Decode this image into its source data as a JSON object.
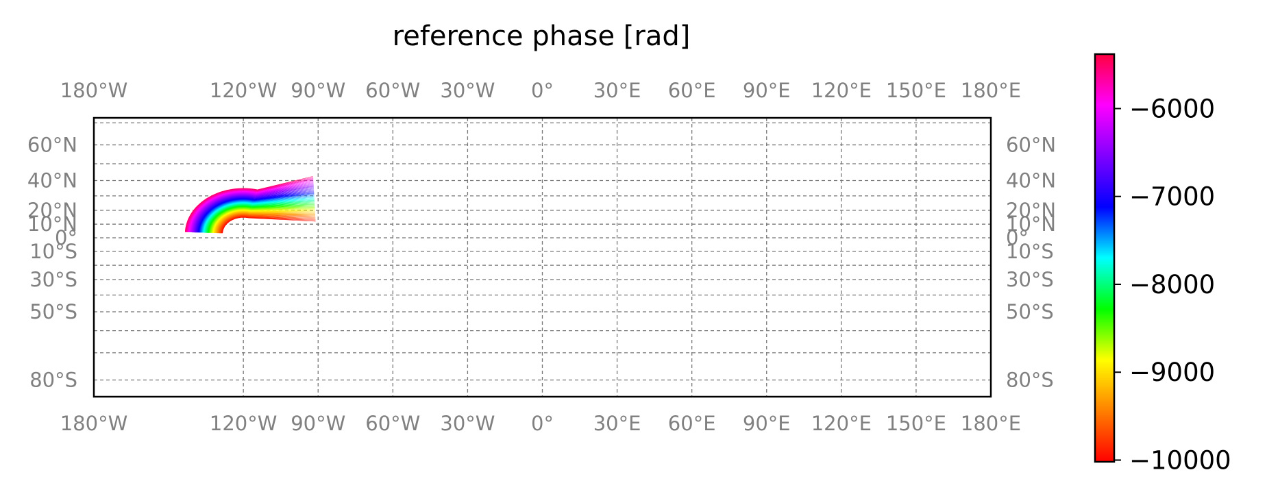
{
  "chart_data": {
    "type": "heatmap",
    "title": "reference phase [rad]",
    "projection": "Miller cylindrical",
    "lon_range": [
      -180,
      180
    ],
    "lat_range": [
      -85,
      72
    ],
    "lon_ticks": [
      {
        "value": -180,
        "label": "180°W"
      },
      {
        "value": -120,
        "label": "120°W"
      },
      {
        "value": -90,
        "label": "90°W"
      },
      {
        "value": -60,
        "label": "60°W"
      },
      {
        "value": -30,
        "label": "30°W"
      },
      {
        "value": 0,
        "label": "0°"
      },
      {
        "value": 30,
        "label": "30°E"
      },
      {
        "value": 60,
        "label": "60°E"
      },
      {
        "value": 90,
        "label": "90°E"
      },
      {
        "value": 120,
        "label": "120°E"
      },
      {
        "value": 150,
        "label": "150°E"
      },
      {
        "value": 180,
        "label": "180°E"
      }
    ],
    "lat_ticks": [
      {
        "value": 60,
        "label": "60°N"
      },
      {
        "value": 40,
        "label": "40°N"
      },
      {
        "value": 20,
        "label": "20°N"
      },
      {
        "value": 10,
        "label": "10°N"
      },
      {
        "value": 0,
        "label": "0°"
      },
      {
        "value": -10,
        "label": "10°S"
      },
      {
        "value": -30,
        "label": "30°S"
      },
      {
        "value": -50,
        "label": "50°S"
      },
      {
        "value": -80,
        "label": "80°S"
      }
    ],
    "lat_gridlines": [
      70,
      60,
      50,
      40,
      30,
      20,
      10,
      0,
      -10,
      -20,
      -30,
      -40,
      -50,
      -60,
      -70,
      -80
    ],
    "grid": true,
    "colorbar": {
      "min": -10000,
      "max": -5400,
      "ticks": [
        {
          "value": -6000,
          "label": "−6000"
        },
        {
          "value": -7000,
          "label": "−7000"
        },
        {
          "value": -8000,
          "label": "−8000"
        },
        {
          "value": -9000,
          "label": "−9000"
        },
        {
          "value": -10000,
          "label": "−10000"
        }
      ],
      "colormap": [
        "#ff0000",
        "#ff8000",
        "#ffff00",
        "#00ff00",
        "#00ffff",
        "#0000ff",
        "#8000ff",
        "#ff00ff",
        "#ff0040"
      ]
    },
    "swath": {
      "description_values": "phase increases from outer-south edge to inner-north edge",
      "center_lon": -120,
      "center_lat": 3,
      "inner_arc": {
        "from_lon": -151,
        "to_lon": -91,
        "lat_low": -12,
        "lat_peak": 18
      },
      "outer_arc": {
        "from_lon": -168,
        "to_lon": -92,
        "lat_low": -5,
        "lat_peak": 43
      },
      "value_range": [
        -10000,
        -5500
      ]
    }
  }
}
